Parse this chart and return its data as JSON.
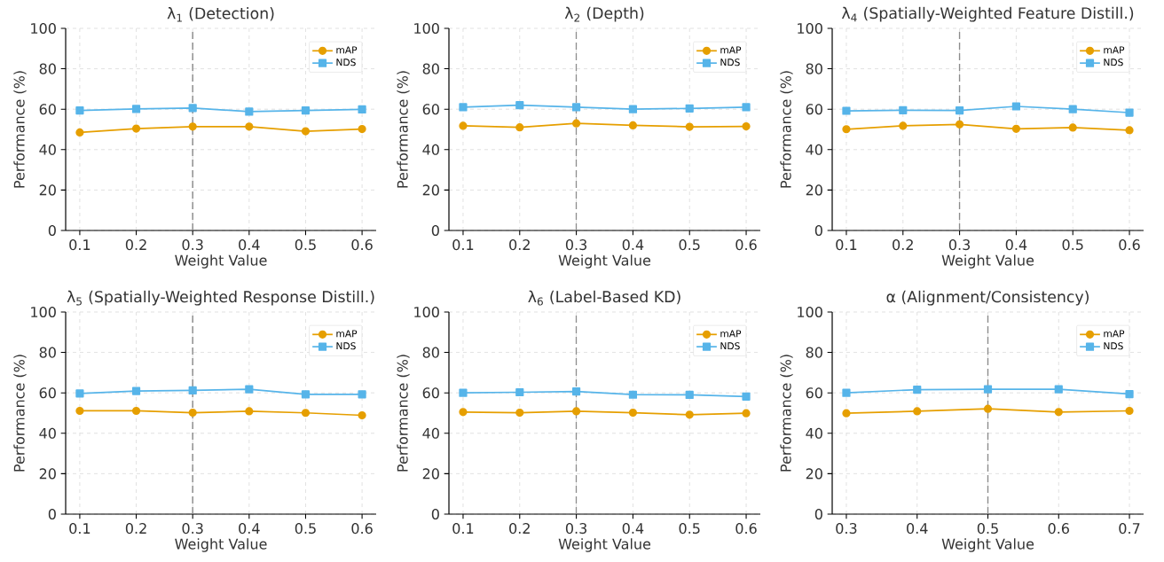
{
  "chart_data": [
    {
      "type": "line",
      "title": "λ$_{1}$ (Detection)",
      "xlabel": "Weight Value",
      "ylabel": "Performance (%)",
      "x": [
        0.1,
        0.2,
        0.3,
        0.4,
        0.5,
        0.6
      ],
      "xlim": [
        0.075,
        0.625
      ],
      "xticks": [
        0.1,
        0.2,
        0.3,
        0.4,
        0.5,
        0.6
      ],
      "ylim": [
        0,
        100
      ],
      "yticks": [
        0,
        20,
        40,
        60,
        80,
        100
      ],
      "grid": true,
      "legend": "top right",
      "line_style": "solid",
      "series": [
        {
          "name": "mAP",
          "color": "#e69f00",
          "marker": "circle",
          "values": [
            48.5,
            50.4,
            51.4,
            51.4,
            49.1,
            50.2
          ]
        },
        {
          "name": "NDS",
          "color": "#56b4e9",
          "marker": "square",
          "values": [
            59.4,
            60.1,
            60.6,
            58.8,
            59.4,
            59.9
          ]
        }
      ],
      "ref_lines": [
        {
          "axis": "x",
          "value": 0.3,
          "color": "#8c8c8c",
          "line_style": "dashed"
        }
      ]
    },
    {
      "type": "line",
      "title": "λ$_{2}$ (Depth)",
      "xlabel": "Weight Value",
      "ylabel": "Performance (%)",
      "x": [
        0.1,
        0.2,
        0.3,
        0.4,
        0.5,
        0.6
      ],
      "xlim": [
        0.075,
        0.625
      ],
      "xticks": [
        0.1,
        0.2,
        0.3,
        0.4,
        0.5,
        0.6
      ],
      "ylim": [
        0,
        100
      ],
      "yticks": [
        0,
        20,
        40,
        60,
        80,
        100
      ],
      "grid": true,
      "legend": "top right",
      "line_style": "solid",
      "series": [
        {
          "name": "mAP",
          "color": "#e69f00",
          "marker": "circle",
          "values": [
            51.8,
            51.0,
            53.0,
            52.0,
            51.3,
            51.5
          ]
        },
        {
          "name": "NDS",
          "color": "#56b4e9",
          "marker": "square",
          "values": [
            61.0,
            62.0,
            61.0,
            60.0,
            60.4,
            61.0
          ]
        }
      ],
      "ref_lines": [
        {
          "axis": "x",
          "value": 0.3,
          "color": "#8c8c8c",
          "line_style": "dashed"
        }
      ]
    },
    {
      "type": "line",
      "title": "λ$_{4}$ (Spatially-Weighted Feature Distill.)",
      "xlabel": "Weight Value",
      "ylabel": "Performance (%)",
      "x": [
        0.1,
        0.2,
        0.3,
        0.4,
        0.5,
        0.6
      ],
      "xlim": [
        0.075,
        0.625
      ],
      "xticks": [
        0.1,
        0.2,
        0.3,
        0.4,
        0.5,
        0.6
      ],
      "ylim": [
        0,
        100
      ],
      "yticks": [
        0,
        20,
        40,
        60,
        80,
        100
      ],
      "grid": true,
      "legend": "top right",
      "line_style": "solid",
      "series": [
        {
          "name": "mAP",
          "color": "#e69f00",
          "marker": "circle",
          "values": [
            50.1,
            51.8,
            52.5,
            50.3,
            50.9,
            49.6
          ]
        },
        {
          "name": "NDS",
          "color": "#56b4e9",
          "marker": "square",
          "values": [
            59.2,
            59.5,
            59.4,
            61.4,
            60.0,
            58.3
          ]
        }
      ],
      "ref_lines": [
        {
          "axis": "x",
          "value": 0.3,
          "color": "#8c8c8c",
          "line_style": "dashed"
        }
      ]
    },
    {
      "type": "line",
      "title": "λ$_{5}$ (Spatially-Weighted Response Distill.)",
      "xlabel": "Weight Value",
      "ylabel": "Performance (%)",
      "x": [
        0.1,
        0.2,
        0.3,
        0.4,
        0.5,
        0.6
      ],
      "xlim": [
        0.075,
        0.625
      ],
      "xticks": [
        0.1,
        0.2,
        0.3,
        0.4,
        0.5,
        0.6
      ],
      "ylim": [
        0,
        100
      ],
      "yticks": [
        0,
        20,
        40,
        60,
        80,
        100
      ],
      "grid": true,
      "legend": "top right",
      "line_style": "solid",
      "series": [
        {
          "name": "mAP",
          "color": "#e69f00",
          "marker": "circle",
          "values": [
            51.1,
            51.1,
            50.2,
            50.9,
            50.1,
            48.9
          ]
        },
        {
          "name": "NDS",
          "color": "#56b4e9",
          "marker": "square",
          "values": [
            59.7,
            60.9,
            61.2,
            61.8,
            59.3,
            59.3
          ]
        }
      ],
      "ref_lines": [
        {
          "axis": "x",
          "value": 0.3,
          "color": "#8c8c8c",
          "line_style": "dashed"
        }
      ]
    },
    {
      "type": "line",
      "title": "λ$_{6}$ (Label-Based KD)",
      "xlabel": "Weight Value",
      "ylabel": "Performance (%)",
      "x": [
        0.1,
        0.2,
        0.3,
        0.4,
        0.5,
        0.6
      ],
      "xlim": [
        0.075,
        0.625
      ],
      "xticks": [
        0.1,
        0.2,
        0.3,
        0.4,
        0.5,
        0.6
      ],
      "ylim": [
        0,
        100
      ],
      "yticks": [
        0,
        20,
        40,
        60,
        80,
        100
      ],
      "grid": true,
      "legend": "top right",
      "line_style": "solid",
      "series": [
        {
          "name": "mAP",
          "color": "#e69f00",
          "marker": "circle",
          "values": [
            50.5,
            50.2,
            50.9,
            50.2,
            49.2,
            49.9
          ]
        },
        {
          "name": "NDS",
          "color": "#56b4e9",
          "marker": "square",
          "values": [
            60.0,
            60.3,
            60.7,
            59.1,
            59.0,
            58.2
          ]
        }
      ],
      "ref_lines": [
        {
          "axis": "x",
          "value": 0.3,
          "color": "#8c8c8c",
          "line_style": "dashed"
        }
      ]
    },
    {
      "type": "line",
      "title": "α (Alignment/Consistency)",
      "xlabel": "Weight Value",
      "ylabel": "Performance (%)",
      "x": [
        0.3,
        0.4,
        0.5,
        0.6,
        0.7
      ],
      "xlim": [
        0.28,
        0.72
      ],
      "xticks": [
        0.3,
        0.4,
        0.5,
        0.6,
        0.7
      ],
      "ylim": [
        0,
        100
      ],
      "yticks": [
        0,
        20,
        40,
        60,
        80,
        100
      ],
      "grid": true,
      "legend": "top right",
      "line_style": "solid",
      "series": [
        {
          "name": "mAP",
          "color": "#e69f00",
          "marker": "circle",
          "values": [
            49.9,
            50.9,
            52.1,
            50.5,
            51.1
          ]
        },
        {
          "name": "NDS",
          "color": "#56b4e9",
          "marker": "square",
          "values": [
            60.0,
            61.6,
            61.8,
            61.8,
            59.4
          ]
        }
      ],
      "ref_lines": [
        {
          "axis": "x",
          "value": 0.5,
          "color": "#8c8c8c",
          "line_style": "dashed"
        }
      ]
    }
  ]
}
